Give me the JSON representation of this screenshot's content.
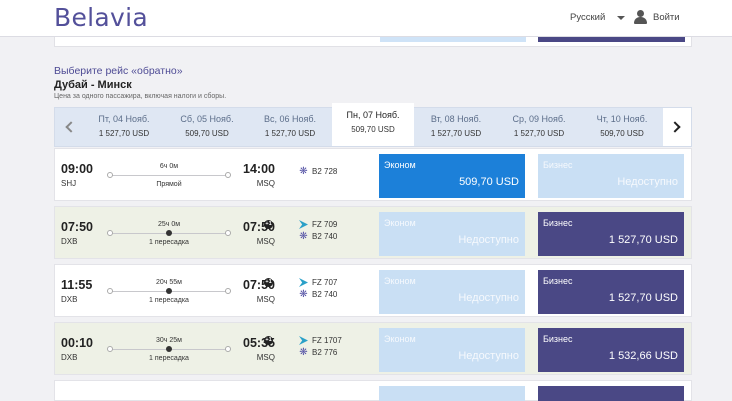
{
  "header": {
    "logo": "Belavia",
    "language": "Русский",
    "login": "Войти"
  },
  "section": {
    "title": "Выберите рейс «обратно»",
    "route": "Дубай - Минск",
    "note": "Цена за одного пассажира, включая налоги и сборы."
  },
  "dates": [
    {
      "label": "Пт, 04 Нояб.",
      "price": "1 527,70 USD",
      "active": false
    },
    {
      "label": "Сб, 05 Нояб.",
      "price": "509,70 USD",
      "active": false
    },
    {
      "label": "Вс, 06 Нояб.",
      "price": "1 527,70 USD",
      "active": false
    },
    {
      "label": "Пн, 07 Нояб.",
      "price": "509,70 USD",
      "active": true
    },
    {
      "label": "Вт, 08 Нояб.",
      "price": "1 527,70 USD",
      "active": false
    },
    {
      "label": "Ср, 09 Нояб.",
      "price": "1 527,70 USD",
      "active": false
    },
    {
      "label": "Чт, 10 Нояб.",
      "price": "509,70 USD",
      "active": false
    }
  ],
  "flights": [
    {
      "dep_time": "09:00",
      "dep_airport": "SHJ",
      "duration": "6ч 0м",
      "stops": "Прямой",
      "arr_time": "14:00",
      "arr_airport": "MSQ",
      "next_day": false,
      "flights": [
        {
          "code": "B2 728",
          "carrier": "belavia"
        }
      ],
      "economy": {
        "label": "Эконом",
        "price": "509,70 USD",
        "state": "selected"
      },
      "business": {
        "label": "Бизнес",
        "price": "Недоступно",
        "state": "unavailable"
      }
    },
    {
      "dep_time": "07:50",
      "dep_airport": "DXB",
      "duration": "25ч 0м",
      "stops": "1 пересадка",
      "arr_time": "07:50",
      "arr_airport": "MSQ",
      "next_day": true,
      "flights": [
        {
          "code": "FZ 709",
          "carrier": "flydubai"
        },
        {
          "code": "B2 740",
          "carrier": "belavia"
        }
      ],
      "economy": {
        "label": "Эконом",
        "price": "Недоступно",
        "state": "unavailable"
      },
      "business": {
        "label": "Бизнес",
        "price": "1 527,70 USD",
        "state": "available"
      }
    },
    {
      "dep_time": "11:55",
      "dep_airport": "DXB",
      "duration": "20ч 55м",
      "stops": "1 пересадка",
      "arr_time": "07:50",
      "arr_airport": "MSQ",
      "next_day": true,
      "flights": [
        {
          "code": "FZ 707",
          "carrier": "flydubai"
        },
        {
          "code": "B2 740",
          "carrier": "belavia"
        }
      ],
      "economy": {
        "label": "Эконом",
        "price": "Недоступно",
        "state": "unavailable"
      },
      "business": {
        "label": "Бизнес",
        "price": "1 527,70 USD",
        "state": "available"
      }
    },
    {
      "dep_time": "00:10",
      "dep_airport": "DXB",
      "duration": "30ч 25м",
      "stops": "1 пересадка",
      "arr_time": "05:35",
      "arr_airport": "MSQ",
      "next_day": true,
      "flights": [
        {
          "code": "FZ 1707",
          "carrier": "flydubai"
        },
        {
          "code": "B2 776",
          "carrier": "belavia"
        }
      ],
      "economy": {
        "label": "Эконом",
        "price": "Недоступно",
        "state": "unavailable"
      },
      "business": {
        "label": "Бизнес",
        "price": "1 532,66 USD",
        "state": "available"
      }
    }
  ],
  "next_day_badge": "+1",
  "colors": {
    "brand": "#53509a",
    "economy_selected": "#1c80d9",
    "unavailable": "#c9dff4",
    "business": "#4a4885"
  }
}
